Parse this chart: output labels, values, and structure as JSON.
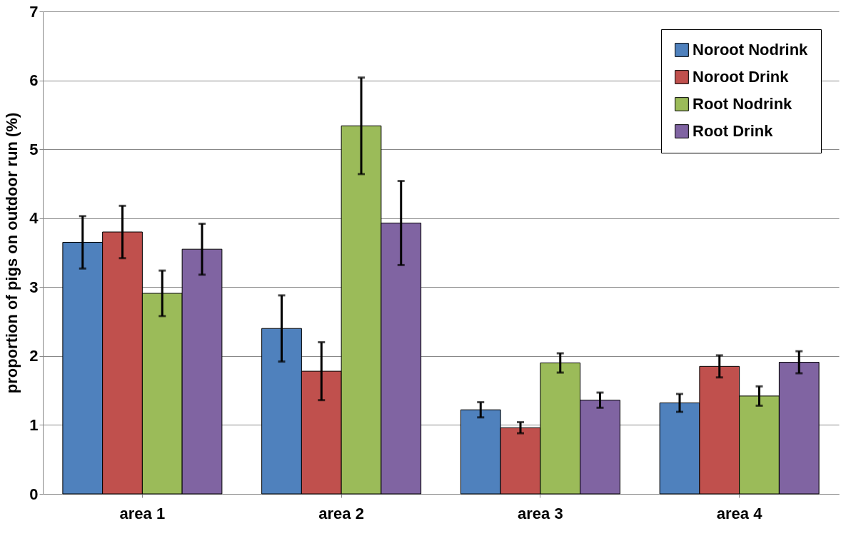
{
  "chart_data": {
    "type": "bar",
    "ylabel": "proportion of pigs on outdoor run (%)",
    "categories": [
      "area 1",
      "area 2",
      "area 3",
      "area 4"
    ],
    "series": [
      {
        "name": "Noroot Nodrink",
        "color": "#4f81bd",
        "values": [
          3.65,
          2.4,
          1.22,
          1.32
        ],
        "errors": [
          0.38,
          0.48,
          0.11,
          0.13
        ]
      },
      {
        "name": "Noroot Drink",
        "color": "#c0504d",
        "values": [
          3.8,
          1.78,
          0.96,
          1.85
        ],
        "errors": [
          0.38,
          0.42,
          0.08,
          0.16
        ]
      },
      {
        "name": "Root Nodrink",
        "color": "#9bbb59",
        "values": [
          2.91,
          5.34,
          1.9,
          1.42
        ],
        "errors": [
          0.33,
          0.7,
          0.14,
          0.14
        ]
      },
      {
        "name": "Root Drink",
        "color": "#8064a2",
        "values": [
          3.55,
          3.93,
          1.36,
          1.91
        ],
        "errors": [
          0.37,
          0.61,
          0.11,
          0.16
        ]
      }
    ],
    "ylim": [
      0,
      7
    ],
    "yticks": [
      0,
      1,
      2,
      3,
      4,
      5,
      6,
      7
    ],
    "grid": "y",
    "legend": "top right"
  }
}
